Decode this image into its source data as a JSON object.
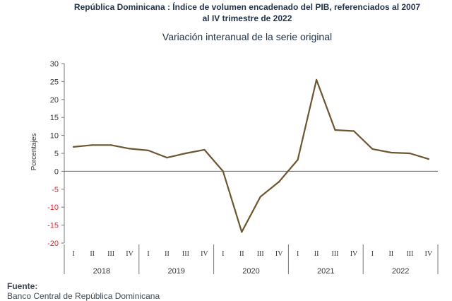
{
  "header": {
    "title_line1": "República Dominicana : Índice de volumen encadenado del PIB, referenciados al 2007",
    "title_line2": "al IV trimestre de 2022",
    "subtitle": "Variación interanual de la serie original"
  },
  "footer": {
    "source_label": "Fuente:",
    "source_text": "Banco Central de República Dominicana"
  },
  "chart_data": {
    "type": "line",
    "title": "Variación interanual de la serie original",
    "ylabel": "Porcentajes",
    "ylim": [
      -20,
      30
    ],
    "yticks": [
      30,
      25,
      20,
      15,
      10,
      5,
      0,
      -5,
      -10,
      -15,
      -20
    ],
    "negative_tick_color": "#e8212a",
    "line_color": "#6b5630",
    "quarter_labels": [
      "I",
      "II",
      "III",
      "IV"
    ],
    "years": [
      "2018",
      "2019",
      "2020",
      "2021",
      "2022"
    ],
    "categories": [
      "2018-I",
      "2018-II",
      "2018-III",
      "2018-IV",
      "2019-I",
      "2019-II",
      "2019-III",
      "2019-IV",
      "2020-I",
      "2020-II",
      "2020-III",
      "2020-IV",
      "2021-I",
      "2021-II",
      "2021-III",
      "2021-IV",
      "2022-I",
      "2022-II",
      "2022-III",
      "2022-IV"
    ],
    "values": [
      6.8,
      7.3,
      7.3,
      6.3,
      5.8,
      3.8,
      5.0,
      6.0,
      0.0,
      -16.9,
      -7.1,
      -2.9,
      3.2,
      25.5,
      11.5,
      11.2,
      6.2,
      5.2,
      5.0,
      3.4
    ]
  }
}
